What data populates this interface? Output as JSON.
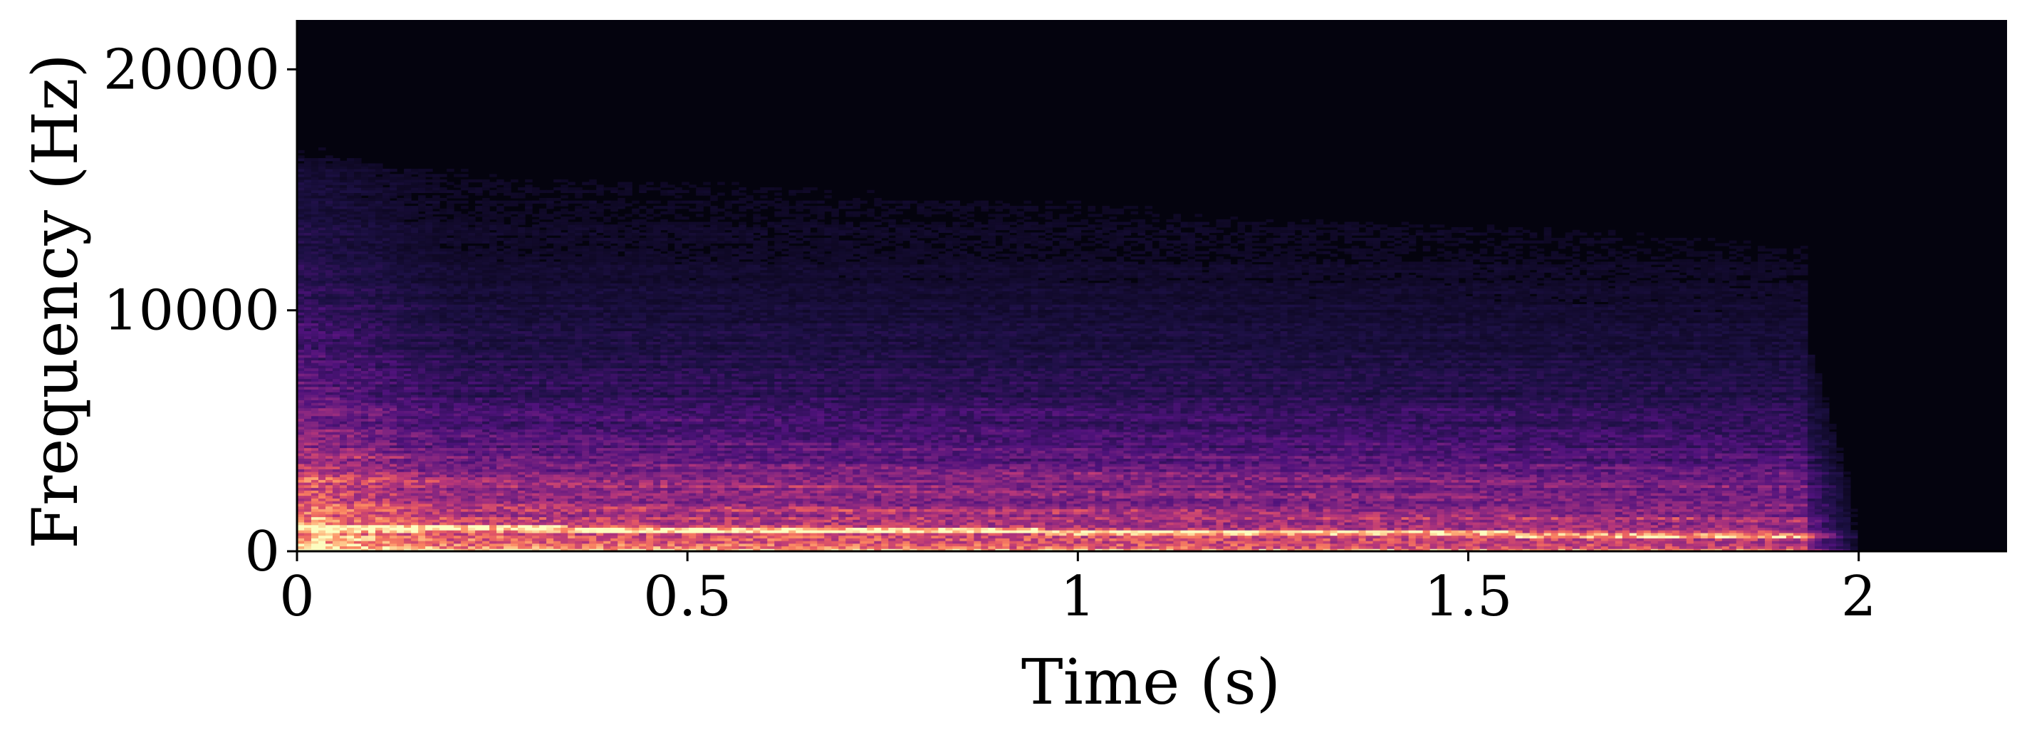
{
  "chart_data": {
    "type": "heatmap",
    "subtype": "spectrogram",
    "title": "",
    "xlabel": "Time (s)",
    "ylabel": "Frequency (Hz)",
    "xlim": [
      0,
      2.19
    ],
    "ylim": [
      0,
      22050
    ],
    "x_ticks": [
      {
        "value": 0,
        "label": "0"
      },
      {
        "value": 0.5,
        "label": "0.5"
      },
      {
        "value": 1,
        "label": "1"
      },
      {
        "value": 1.5,
        "label": "1.5"
      },
      {
        "value": 2,
        "label": "2"
      }
    ],
    "y_ticks": [
      {
        "value": 0,
        "label": "0"
      },
      {
        "value": 10000,
        "label": "10000"
      },
      {
        "value": 20000,
        "label": "20000"
      }
    ],
    "colormap": "magma",
    "grid": false,
    "legend": "none",
    "sound_end_time": 1.93,
    "tail_end_time": 2.01,
    "fundamental_start_hz": 1000,
    "fundamental_end_hz": 650,
    "colormap_stops": [
      "#000004",
      "#1c1044",
      "#4f127b",
      "#812581",
      "#b5367a",
      "#e55964",
      "#fb8761",
      "#fec287",
      "#fcfdbf"
    ]
  }
}
